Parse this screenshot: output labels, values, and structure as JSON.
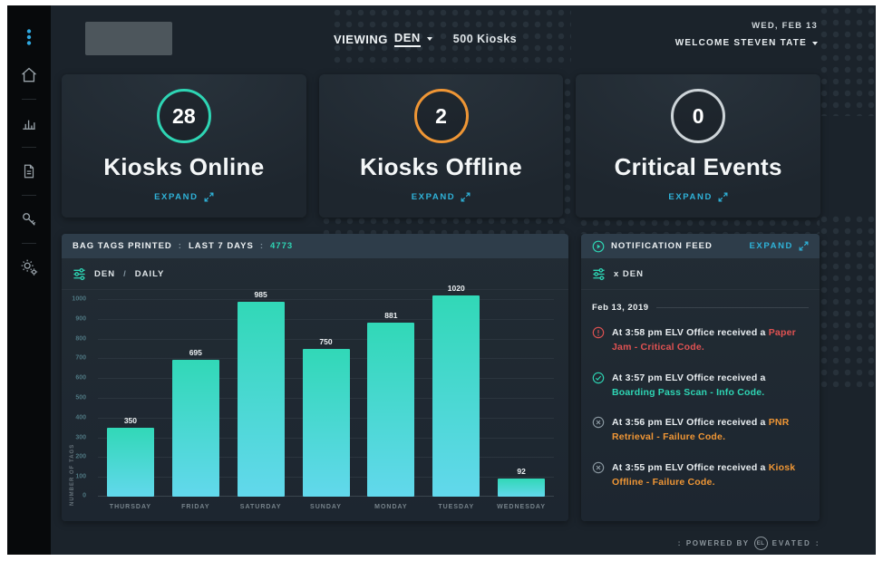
{
  "header": {
    "viewing_label": "VIEWING",
    "viewing_value": "DEN",
    "kiosk_count": "500 Kiosks",
    "date": "WED, FEB 13",
    "welcome": "WELCOME STEVEN TATE"
  },
  "sidebar": {
    "icons": [
      "kebab-menu-icon",
      "home-icon",
      "bar-chart-icon",
      "document-icon",
      "key-icon",
      "gears-icon"
    ]
  },
  "stats": [
    {
      "value": "28",
      "label": "Kiosks Online",
      "expand_label": "EXPAND",
      "ring_color": "#2ed5b4"
    },
    {
      "value": "2",
      "label": "Kiosks Offline",
      "expand_label": "EXPAND",
      "ring_color": "#ef9635"
    },
    {
      "value": "0",
      "label": "Critical Events",
      "expand_label": "EXPAND",
      "ring_color": "#cdd4d8"
    }
  ],
  "chart_panel": {
    "title": "BAG TAGS PRINTED",
    "sep": ":",
    "range_label": "LAST 7 DAYS",
    "total": "4773",
    "scope": "DEN",
    "divider": "/",
    "period": "DAILY"
  },
  "chart_data": {
    "type": "bar",
    "title": "BAG TAGS PRINTED : LAST 7 DAYS : 4773",
    "categories": [
      "THURSDAY",
      "FRIDAY",
      "SATURDAY",
      "SUNDAY",
      "MONDAY",
      "TUESDAY",
      "WEDNESDAY"
    ],
    "values": [
      350,
      695,
      985,
      750,
      881,
      1020,
      92
    ],
    "ylabel": "NUMBER OF TAGS",
    "xlabel": "",
    "ylim": [
      0,
      1000
    ],
    "ytick_step": 100,
    "grid": true,
    "legend": false,
    "bar_gradient": [
      "#31d8b7",
      "#62d8ec"
    ]
  },
  "notifications": {
    "title": "NOTIFICATION FEED",
    "expand_label": "EXPAND",
    "filter_label": "x DEN",
    "date_header": "Feb 13, 2019",
    "items": [
      {
        "type": "critical",
        "icon": "alert-circle-icon",
        "icon_color": "#e05252",
        "prefix": "At 3:58 pm ELV Office received a ",
        "highlight": "Paper Jam - Critical Code.",
        "highlight_color": "#e05252"
      },
      {
        "type": "info",
        "icon": "check-circle-icon",
        "icon_color": "#2ed5b4",
        "prefix": "At 3:57 pm ELV Office received a ",
        "highlight": "Boarding Pass Scan - Info Code.",
        "highlight_color": "#2ed5b4"
      },
      {
        "type": "failure",
        "icon": "x-circle-icon",
        "icon_color": "#8a97a0",
        "prefix": "At 3:56 pm ELV Office received a ",
        "highlight": "PNR Retrieval - Failure Code.",
        "highlight_color": "#ef9635"
      },
      {
        "type": "failure",
        "icon": "x-circle-icon",
        "icon_color": "#8a97a0",
        "prefix": "At 3:55 pm ELV Office received a ",
        "highlight": "Kiosk Offline - Failure Code.",
        "highlight_color": "#ef9635"
      }
    ]
  },
  "footer": {
    "colon": ":",
    "powered_by": "POWERED BY",
    "brand_circle": "EL",
    "brand_rest": "EVATED"
  },
  "colors": {
    "accent_teal": "#2ed5b4",
    "accent_blue": "#2fb2d8",
    "accent_orange": "#ef9635",
    "accent_red": "#e05252",
    "panel_header": "#2e3d4a",
    "background": "#1b232b"
  }
}
